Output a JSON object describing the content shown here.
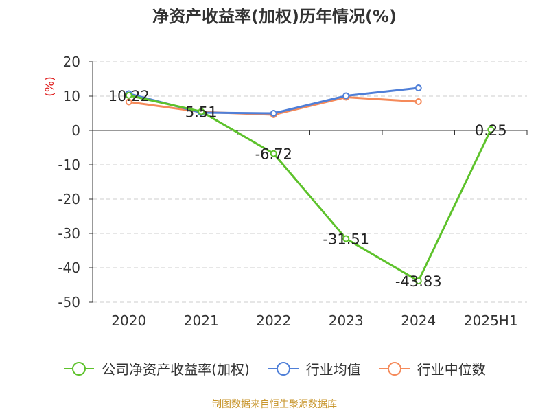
{
  "chart_data": {
    "type": "line",
    "title": "净资产收益率(加权)历年情况(%)",
    "ylabel": "(%)",
    "xlabel": "",
    "categories": [
      "2020",
      "2021",
      "2022",
      "2023",
      "2024",
      "2025H1"
    ],
    "ylim": [
      -50,
      20
    ],
    "yticks": [
      20,
      10,
      0,
      -10,
      -20,
      -30,
      -40,
      -50
    ],
    "grid": true,
    "legend_position": "bottom",
    "series": [
      {
        "name": "公司净资产收益率(加权)",
        "color": "#5dc22b",
        "values": [
          10.22,
          5.51,
          -6.72,
          -31.51,
          -43.83,
          0.25
        ],
        "data_labels": [
          "10.22",
          "5.51",
          "-6.72",
          "-31.51",
          "-43.83",
          "0.25"
        ]
      },
      {
        "name": "行业均值",
        "color": "#4f7fd8",
        "values": [
          10.7,
          5.2,
          5.0,
          10.1,
          12.4,
          null
        ]
      },
      {
        "name": "行业中位数",
        "color": "#f58a5a",
        "values": [
          8.3,
          5.4,
          4.6,
          9.7,
          8.4,
          null
        ]
      }
    ]
  },
  "footer": {
    "source": "制图数据来自恒生聚源数据库"
  }
}
